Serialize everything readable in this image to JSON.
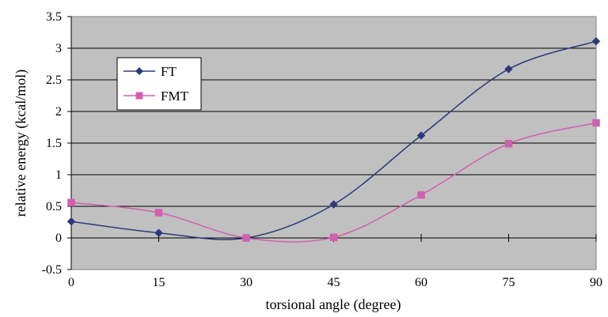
{
  "chart_data": {
    "type": "line",
    "title": "",
    "xlabel": "torsional angle (degree)",
    "ylabel": "relative energy (kcal/mol)",
    "xlim": [
      0,
      90
    ],
    "ylim": [
      -0.5,
      3.5
    ],
    "x_ticks": [
      "0",
      "15",
      "30",
      "45",
      "60",
      "75",
      "90"
    ],
    "y_ticks": [
      "-0.5",
      "0",
      "0.5",
      "1",
      "1.5",
      "2",
      "2.5",
      "3",
      "3.5"
    ],
    "grid": "horizontal",
    "legend_position": "top-left",
    "plot_background": "#c0c0c0",
    "series": [
      {
        "name": "FT",
        "color": "#2b3a7a",
        "marker": "diamond",
        "x": [
          0,
          15,
          30,
          45,
          60,
          75,
          90
        ],
        "values": [
          0.26,
          0.08,
          0.0,
          0.53,
          1.62,
          2.67,
          3.11
        ]
      },
      {
        "name": "FMT",
        "color": "#d060b0",
        "marker": "square",
        "x": [
          0,
          15,
          30,
          45,
          60,
          75,
          90
        ],
        "values": [
          0.56,
          0.4,
          0.0,
          0.01,
          0.68,
          1.49,
          1.82
        ]
      }
    ]
  }
}
